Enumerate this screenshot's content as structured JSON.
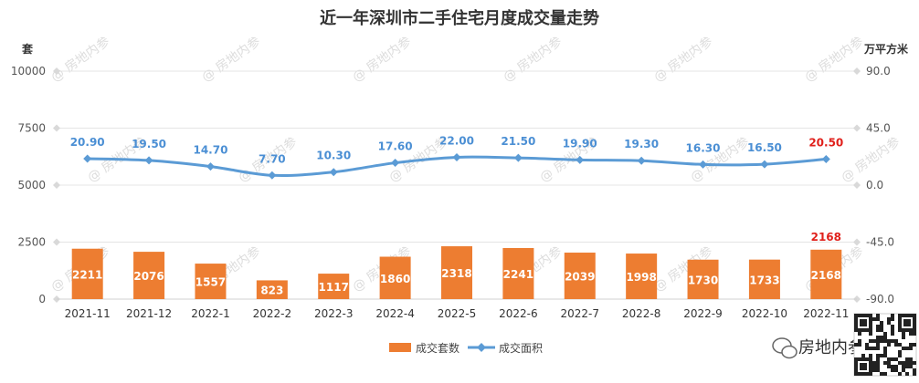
{
  "chart_data": {
    "type": "bar+line",
    "title": "近一年深圳市二手住宅月度成交量走势",
    "left_unit": "套",
    "right_unit": "万平方米",
    "categories": [
      "2021-11",
      "2021-12",
      "2022-1",
      "2022-2",
      "2022-3",
      "2022-4",
      "2022-5",
      "2022-6",
      "2022-7",
      "2022-8",
      "2022-9",
      "2022-10",
      "2022-11"
    ],
    "series": [
      {
        "name": "成交套数",
        "type": "bar",
        "axis": "left",
        "color": "#ed7d31",
        "values": [
          2211,
          2076,
          1557,
          823,
          1117,
          1860,
          2318,
          2241,
          2039,
          1998,
          1730,
          1733,
          2168
        ]
      },
      {
        "name": "成交面积",
        "type": "line",
        "axis": "right",
        "color": "#5b9bd5",
        "values": [
          20.9,
          19.5,
          14.7,
          7.7,
          10.3,
          17.6,
          22.0,
          21.5,
          19.9,
          19.3,
          16.3,
          16.5,
          20.5
        ],
        "labels": [
          "20.90",
          "19.50",
          "14.70",
          "7.70",
          "10.30",
          "17.60",
          "22.00",
          "21.50",
          "19.90",
          "19.30",
          "16.30",
          "16.50",
          "20.50"
        ]
      }
    ],
    "left_axis": {
      "min": 0,
      "max": 10000,
      "ticks": [
        "0",
        "2500",
        "5000",
        "7500",
        "10000"
      ]
    },
    "right_axis": {
      "min": -90,
      "max": 90,
      "ticks": [
        "-90.0",
        "-45.0",
        "0.0",
        "45.0",
        "90.0"
      ]
    },
    "highlight_color": "#e0201b",
    "grid": "horizontal",
    "legend_position": "bottom"
  },
  "watermark": "房地内参",
  "brand": {
    "name": "房地内参",
    "icon": "wechat-icon"
  }
}
